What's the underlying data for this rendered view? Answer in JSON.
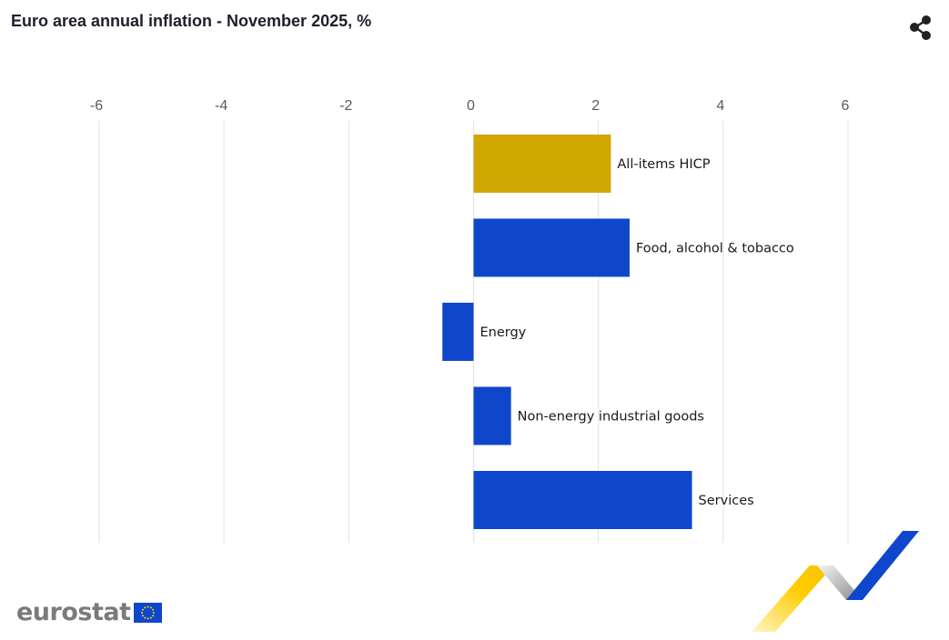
{
  "header": {
    "title": "Euro area annual inflation - November 2025, %",
    "share_icon": "share-icon"
  },
  "chart_data": {
    "type": "bar",
    "orientation": "horizontal",
    "title": "Euro area annual inflation - November 2025, %",
    "xlabel": "",
    "ylabel": "",
    "xlim": [
      -6,
      6
    ],
    "xticks": [
      "-6",
      "-4",
      "-2",
      "0",
      "2",
      "4",
      "6"
    ],
    "categories": [
      "All-items HICP",
      "Food, alcohol & tobacco",
      "Energy",
      "Non-energy industrial goods",
      "Services"
    ],
    "values": [
      2.2,
      2.5,
      -0.5,
      0.6,
      3.5
    ],
    "colors": [
      "#d0a700",
      "#0e47cb",
      "#0e47cb",
      "#0e47cb",
      "#0e47cb"
    ],
    "grid": true,
    "axis_position": "top"
  },
  "footer": {
    "logo_text": "eurostat",
    "flag_icon": "eu-flag-icon"
  },
  "colors": {
    "highlight": "#d0a700",
    "bar": "#0e47cb",
    "grid": "#e6e6e6",
    "title": "#1e1e2e"
  }
}
